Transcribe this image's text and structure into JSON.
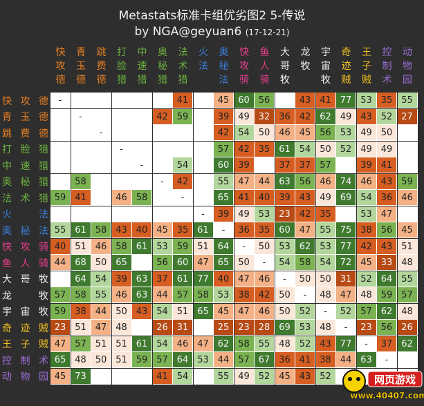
{
  "title": "Metastats标准卡组优劣图2  5-传说",
  "subtitle": "by NGA@geyuan6",
  "date": "(17-12-21)",
  "decks": [
    {
      "name": "快攻德",
      "color": "#e67e22"
    },
    {
      "name": "青玉德",
      "color": "#e67e22"
    },
    {
      "name": "跳费德",
      "color": "#e67e22"
    },
    {
      "name": "打脸猎",
      "color": "#6db33f"
    },
    {
      "name": "中速猎",
      "color": "#6db33f"
    },
    {
      "name": "奥秘猎",
      "color": "#6db33f"
    },
    {
      "name": "法术猎",
      "color": "#6db33f"
    },
    {
      "name": "火法",
      "color": "#3b7fd9"
    },
    {
      "name": "奥秘法",
      "color": "#3b7fd9"
    },
    {
      "name": "快攻骑",
      "color": "#e83e8c"
    },
    {
      "name": "鱼人骑",
      "color": "#e83e8c"
    },
    {
      "name": "大哥牧",
      "color": "#f2f2f2"
    },
    {
      "name": "龙牧",
      "color": "#f2f2f2"
    },
    {
      "name": "宇宙牧",
      "color": "#f2f2f2"
    },
    {
      "name": "奇迹贼",
      "color": "#f0c020"
    },
    {
      "name": "王子贼",
      "color": "#f0c020"
    },
    {
      "name": "控制术",
      "color": "#9b6fd6"
    },
    {
      "name": "动物园",
      "color": "#9b6fd6"
    }
  ],
  "column_headers": [
    "快攻德",
    "青玉德",
    "跳费德",
    "打脸猎",
    "中速猎",
    "奥秘猎",
    "法术猎",
    "火法",
    "奥秘法",
    "快攻骑",
    "鱼人骑",
    "大哥牧",
    "龙牧",
    "宇宙牧",
    "奇迹贼",
    "王子贼",
    "控制术",
    "动物园"
  ],
  "matrix": [
    [
      "-",
      "",
      "",
      "",
      "",
      "",
      "41",
      "",
      "45",
      "60",
      "56",
      "",
      "43",
      "41",
      "77",
      "53",
      "35",
      "55"
    ],
    [
      "",
      "-",
      "",
      "",
      "",
      "42",
      "59",
      "",
      "39",
      "49",
      "32",
      "36",
      "42",
      "62",
      "49",
      "43",
      "52",
      "27"
    ],
    [
      "",
      "",
      "-",
      "",
      "",
      "",
      "",
      "",
      "42",
      "54",
      "50",
      "46",
      "45",
      "56",
      "53",
      "49",
      "50",
      ""
    ],
    [
      "",
      "",
      "",
      "-",
      "",
      "",
      "",
      "",
      "57",
      "42",
      "35",
      "61",
      "54",
      "50",
      "52",
      "49",
      "49",
      ""
    ],
    [
      "",
      "",
      "",
      "",
      "-",
      "",
      "54",
      "",
      "60",
      "39",
      "",
      "37",
      "37",
      "57",
      "",
      "39",
      "41",
      ""
    ],
    [
      "",
      "58",
      "",
      "",
      "",
      "-",
      "42",
      "",
      "55",
      "47",
      "44",
      "63",
      "56",
      "46",
      "74",
      "46",
      "43",
      "59"
    ],
    [
      "59",
      "41",
      "",
      "46",
      "58",
      "",
      "-",
      "",
      "65",
      "41",
      "40",
      "39",
      "43",
      "49",
      "69",
      "54",
      "36",
      "46"
    ],
    [
      "",
      "",
      "",
      "",
      "",
      "",
      "",
      "-",
      "39",
      "49",
      "53",
      "23",
      "42",
      "35",
      "",
      "53",
      "47",
      ""
    ],
    [
      "55",
      "61",
      "58",
      "43",
      "40",
      "45",
      "35",
      "61",
      "-",
      "36",
      "35",
      "60",
      "47",
      "55",
      "75",
      "38",
      "56",
      "45"
    ],
    [
      "40",
      "51",
      "46",
      "58",
      "61",
      "53",
      "59",
      "51",
      "64",
      "-",
      "50",
      "53",
      "62",
      "53",
      "77",
      "42",
      "43",
      "51"
    ],
    [
      "44",
      "68",
      "50",
      "65",
      "",
      "56",
      "60",
      "47",
      "65",
      "50",
      "-",
      "54",
      "58",
      "54",
      "72",
      "45",
      "33",
      "48"
    ],
    [
      "",
      "64",
      "54",
      "39",
      "63",
      "37",
      "61",
      "77",
      "40",
      "47",
      "46",
      "-",
      "50",
      "50",
      "31",
      "52",
      "64",
      "55"
    ],
    [
      "57",
      "58",
      "55",
      "46",
      "63",
      "44",
      "57",
      "58",
      "53",
      "38",
      "42",
      "50",
      "-",
      "48",
      "47",
      "48",
      "59",
      "57"
    ],
    [
      "59",
      "38",
      "44",
      "50",
      "43",
      "54",
      "51",
      "65",
      "45",
      "47",
      "46",
      "50",
      "52",
      "-",
      "52",
      "57",
      "62",
      "48"
    ],
    [
      "23",
      "51",
      "47",
      "48",
      "",
      "26",
      "31",
      "",
      "25",
      "23",
      "28",
      "69",
      "53",
      "48",
      "-",
      "23",
      "56",
      "26"
    ],
    [
      "47",
      "57",
      "51",
      "51",
      "61",
      "54",
      "46",
      "47",
      "62",
      "58",
      "55",
      "48",
      "52",
      "43",
      "77",
      "-",
      "37",
      "62"
    ],
    [
      "65",
      "48",
      "50",
      "51",
      "59",
      "57",
      "64",
      "53",
      "44",
      "57",
      "67",
      "36",
      "41",
      "38",
      "44",
      "63",
      "-",
      ""
    ],
    [
      "45",
      "73",
      "",
      "",
      "",
      "41",
      "54",
      "",
      "55",
      "49",
      "52",
      "45",
      "43",
      "52",
      "",
      "",
      "",
      ""
    ]
  ],
  "palette": {
    "very_high": "#3f7a2f",
    "high": "#7bb352",
    "mid_high": "#b3d69c",
    "even": "#fbe7d9",
    "mid_low": "#f4b185",
    "low": "#d65e22",
    "very_low": "#b84a14"
  },
  "watermark": {
    "name": "网页游戏",
    "url": "www.40407.com"
  }
}
